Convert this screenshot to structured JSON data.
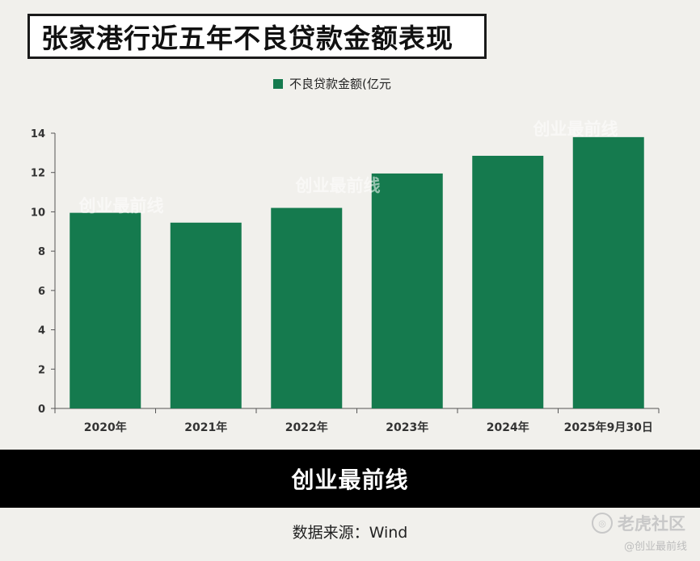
{
  "title": "张家港行近五年不良贷款金额表现",
  "watermark": "创业最前线",
  "footer": {
    "brand": "创业最前线",
    "source": "数据来源：Wind"
  },
  "corner_watermark": {
    "site": "老虎社区",
    "handle": "@创业最前线"
  },
  "colors": {
    "bar": "#157a4e",
    "background": "#f1f0ec",
    "footer": "#000000"
  },
  "chart_data": {
    "type": "bar",
    "title": "",
    "xlabel": "",
    "ylabel": "",
    "categories": [
      "2020年",
      "2021年",
      "2022年",
      "2023年",
      "2024年",
      "2025年9月30日"
    ],
    "series": [
      {
        "name": "不良贷款金额(亿元",
        "values": [
          9.95,
          9.45,
          10.2,
          11.95,
          12.85,
          13.8
        ]
      }
    ],
    "ylim": [
      0,
      14
    ],
    "yticks": [
      0,
      2,
      4,
      6,
      8,
      10,
      12,
      14
    ],
    "legend": "top-center",
    "grid": false
  }
}
